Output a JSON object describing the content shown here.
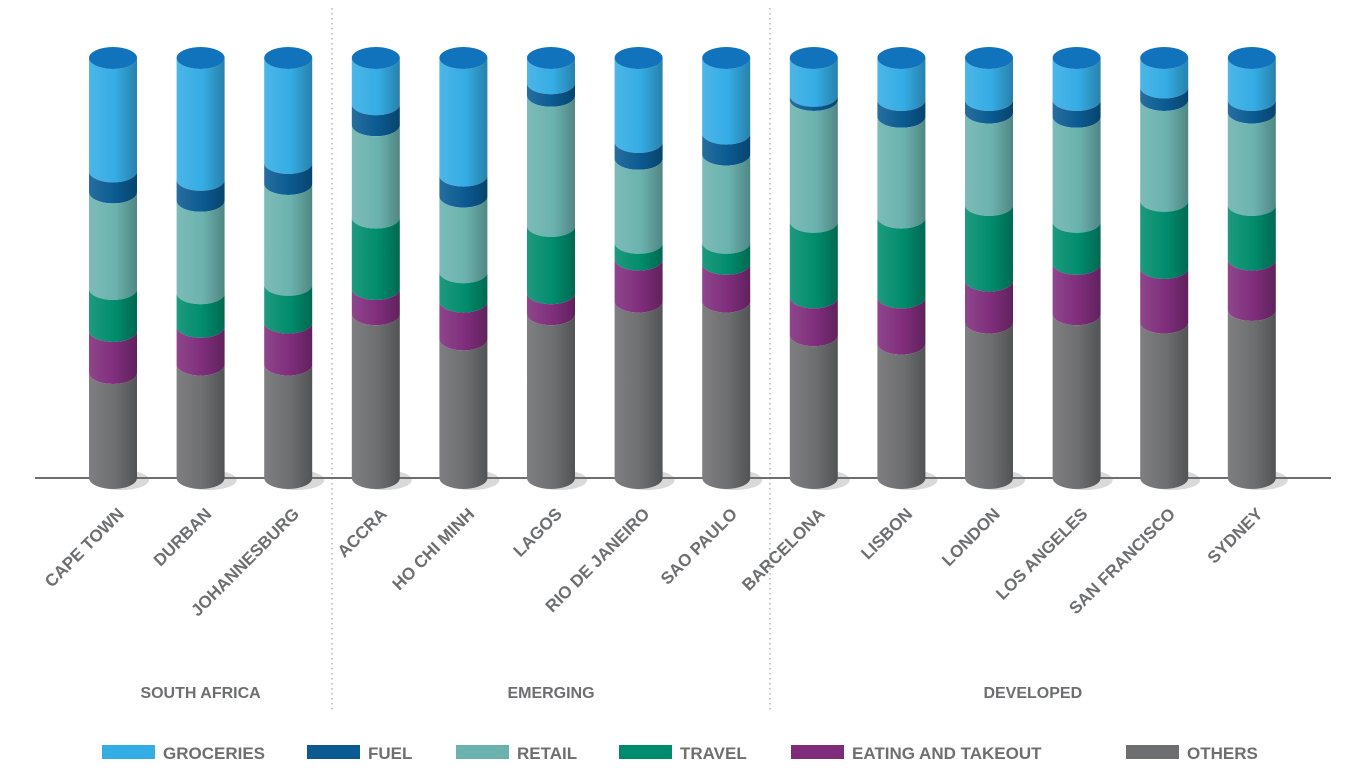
{
  "chart_data": {
    "type": "bar",
    "stacked": true,
    "orientation": "vertical",
    "style": "3d-cylinder",
    "ylim": [
      0,
      100
    ],
    "grid": false,
    "legend_position": "bottom",
    "categories": [
      "CAPE TOWN",
      "DURBAN",
      "JOHANNESBURG",
      "ACCRA",
      "HO CHI MINH",
      "LAGOS",
      "RIO DE JANEIRO",
      "SAO PAULO",
      "BARCELONA",
      "LISBON",
      "LONDON",
      "LOS ANGELES",
      "SAN FRANCISCO",
      "SYDNEY"
    ],
    "groups": [
      {
        "label": "SOUTH AFRICA",
        "categories": [
          "CAPE TOWN",
          "DURBAN",
          "JOHANNESBURG"
        ]
      },
      {
        "label": "EMERGING",
        "categories": [
          "ACCRA",
          "HO CHI MINH",
          "LAGOS",
          "RIO DE JANEIRO",
          "SAO PAULO"
        ]
      },
      {
        "label": "DEVELOPED",
        "categories": [
          "BARCELONA",
          "LISBON",
          "LONDON",
          "LOS ANGELES",
          "SAN FRANCISCO",
          "SYDNEY"
        ]
      }
    ],
    "series": [
      {
        "name": "OTHERS",
        "color": "#6d6e70",
        "values": [
          25,
          27,
          27,
          39,
          33,
          39,
          42,
          42,
          34,
          32,
          37,
          39,
          37,
          40
        ]
      },
      {
        "name": "EATING AND TAKEOUT",
        "color": "#7f2d7b",
        "values": [
          10,
          9,
          10,
          6,
          9,
          5,
          10,
          9,
          9,
          11,
          10,
          12,
          13,
          12
        ]
      },
      {
        "name": "TRAVEL",
        "color": "#008c6c",
        "values": [
          10,
          8,
          9,
          17,
          7,
          16,
          4,
          5,
          18,
          19,
          18,
          10,
          16,
          13
        ]
      },
      {
        "name": "RETAIL",
        "color": "#6bb2ae",
        "values": [
          23,
          22,
          24,
          22,
          18,
          31,
          20,
          21,
          29,
          24,
          22,
          25,
          24,
          22
        ]
      },
      {
        "name": "FUEL",
        "color": "#0a5a91",
        "values": [
          5,
          5,
          5,
          5,
          5,
          3,
          4,
          5,
          1,
          4,
          3,
          4,
          3,
          3
        ]
      },
      {
        "name": "GROCERIES",
        "color": "#34ace4",
        "values": [
          27,
          29,
          25,
          11,
          28,
          6,
          20,
          18,
          9,
          10,
          10,
          10,
          7,
          10
        ]
      }
    ],
    "legend": [
      {
        "name": "GROCERIES",
        "color": "#34ace4"
      },
      {
        "name": "FUEL",
        "color": "#0a5a91"
      },
      {
        "name": "RETAIL",
        "color": "#6bb2ae"
      },
      {
        "name": "TRAVEL",
        "color": "#008c6c"
      },
      {
        "name": "EATING AND TAKEOUT",
        "color": "#7f2d7b"
      },
      {
        "name": "OTHERS",
        "color": "#6d6e70"
      }
    ],
    "colors": {
      "axis": "#6d6e70",
      "label": "#6d6e70",
      "divider": "#a7a9ac",
      "cap_top": "#1173bb",
      "shadow": "#d9d9da"
    }
  }
}
